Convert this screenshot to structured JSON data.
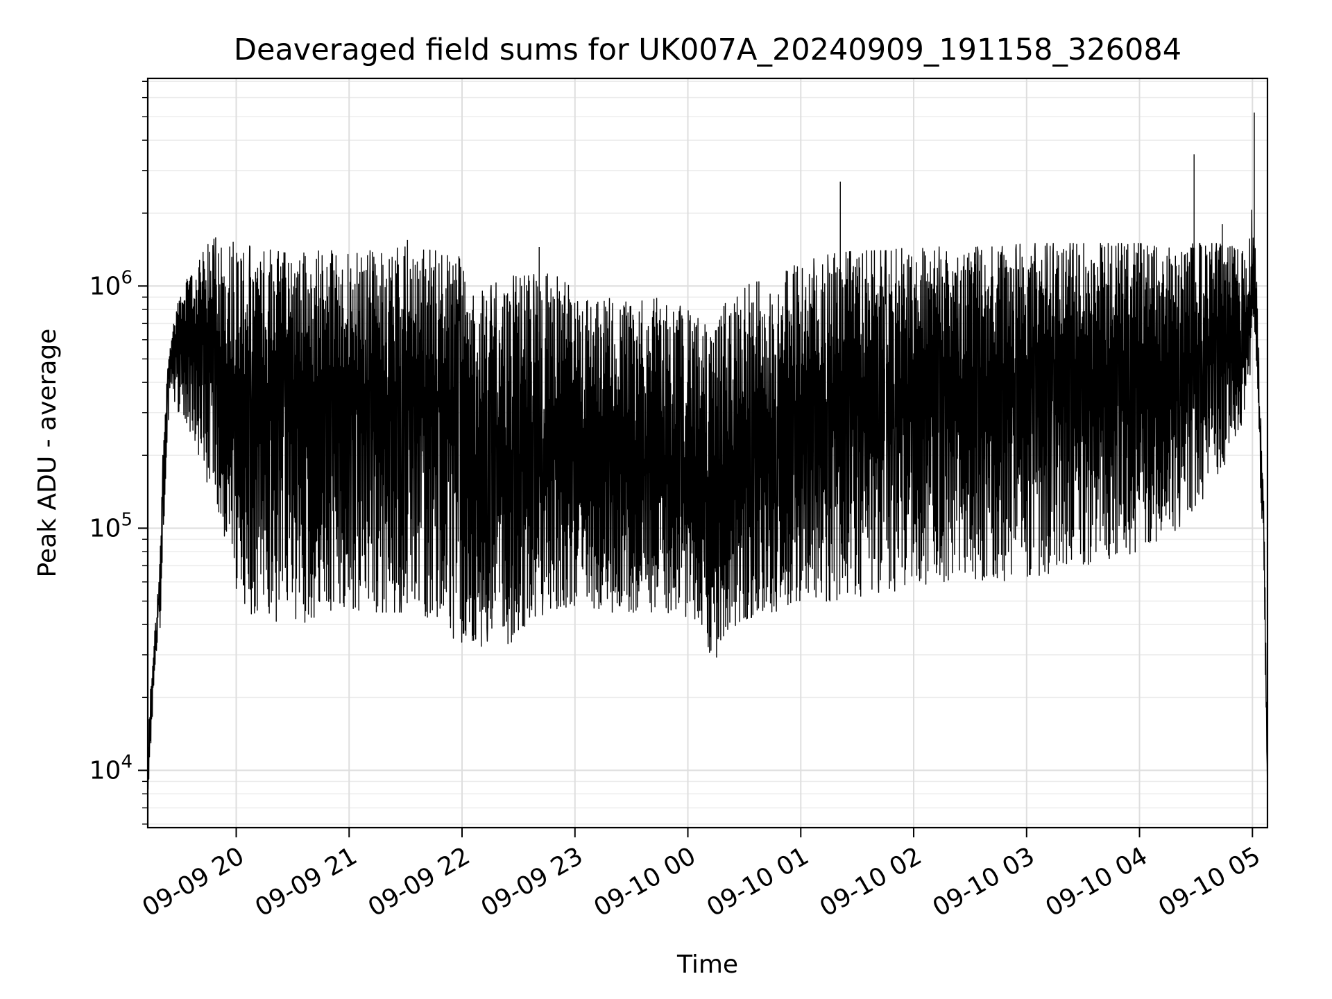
{
  "chart_data": {
    "type": "line",
    "title": "Deaveraged field sums for UK007A_20240909_191158_326084",
    "xlabel": "Time",
    "ylabel": "Peak ADU - average",
    "y_scale": "log",
    "ylim": [
      5800,
      7200000
    ],
    "xlim": [
      "2024-09-09 19:13",
      "2024-09-10 05:08"
    ],
    "grid": true,
    "line_color": "#000000",
    "x_ticks": [
      {
        "t": "2024-09-09 20:00",
        "label": "09-09 20"
      },
      {
        "t": "2024-09-09 21:00",
        "label": "09-09 21"
      },
      {
        "t": "2024-09-09 22:00",
        "label": "09-09 22"
      },
      {
        "t": "2024-09-09 23:00",
        "label": "09-09 23"
      },
      {
        "t": "2024-09-10 00:00",
        "label": "09-10 00"
      },
      {
        "t": "2024-09-10 01:00",
        "label": "09-10 01"
      },
      {
        "t": "2024-09-10 02:00",
        "label": "09-10 02"
      },
      {
        "t": "2024-09-10 03:00",
        "label": "09-10 03"
      },
      {
        "t": "2024-09-10 04:00",
        "label": "09-10 04"
      },
      {
        "t": "2024-09-10 05:00",
        "label": "09-10 05"
      }
    ],
    "y_ticks": [
      {
        "value": 10000,
        "base": "10",
        "exp": "4"
      },
      {
        "value": 100000,
        "base": "10",
        "exp": "5"
      },
      {
        "value": 1000000,
        "base": "10",
        "exp": "6"
      }
    ],
    "series": [
      {
        "x": [
          "2024-09-09 19:13",
          "2024-09-09 19:14",
          "2024-09-09 19:16",
          "2024-09-09 19:18",
          "2024-09-09 19:20",
          "2024-09-09 19:21",
          "2024-09-09 19:23",
          "2024-09-09 19:25",
          "2024-09-09 19:28",
          "2024-09-09 19:31",
          "2024-09-09 19:35",
          "2024-09-09 19:40",
          "2024-09-09 19:45",
          "2024-09-09 19:50",
          "2024-09-09 20:00",
          "2024-09-09 20:10",
          "2024-09-09 20:20",
          "2024-09-09 20:30",
          "2024-09-09 20:45",
          "2024-09-09 21:00",
          "2024-09-09 21:15",
          "2024-09-09 21:30",
          "2024-09-09 21:45",
          "2024-09-09 21:52",
          "2024-09-09 21:58",
          "2024-09-09 22:05",
          "2024-09-09 22:15",
          "2024-09-09 22:25",
          "2024-09-09 22:35",
          "2024-09-09 22:45",
          "2024-09-09 23:00",
          "2024-09-09 23:15",
          "2024-09-09 23:30",
          "2024-09-09 23:45",
          "2024-09-10 00:00",
          "2024-09-10 00:08",
          "2024-09-10 00:13",
          "2024-09-10 00:20",
          "2024-09-10 00:30",
          "2024-09-10 00:45",
          "2024-09-10 01:00",
          "2024-09-10 01:15",
          "2024-09-10 01:30",
          "2024-09-10 01:45",
          "2024-09-10 02:00",
          "2024-09-10 02:15",
          "2024-09-10 02:30",
          "2024-09-10 02:45",
          "2024-09-10 03:00",
          "2024-09-10 03:15",
          "2024-09-10 03:30",
          "2024-09-10 03:45",
          "2024-09-10 04:00",
          "2024-09-10 04:15",
          "2024-09-10 04:30",
          "2024-09-10 04:45",
          "2024-09-10 04:52",
          "2024-09-10 04:58",
          "2024-09-10 05:00",
          "2024-09-10 05:02",
          "2024-09-10 05:04",
          "2024-09-10 05:06",
          "2024-09-10 05:07",
          "2024-09-10 05:08"
        ],
        "upper": [
          10000,
          20000,
          33000,
          50000,
          100000,
          200000,
          400000,
          600000,
          800000,
          1000000,
          1100000,
          1300000,
          1500000,
          1600000,
          1500000,
          1450000,
          1400000,
          1350000,
          1400000,
          1400000,
          1400000,
          1450000,
          1450000,
          1400000,
          1350000,
          900000,
          1000000,
          1100000,
          1100000,
          1150000,
          1000000,
          900000,
          850000,
          900000,
          800000,
          750000,
          700000,
          850000,
          1000000,
          1100000,
          1250000,
          1350000,
          1400000,
          1400000,
          1450000,
          1450000,
          1450000,
          1450000,
          1500000,
          1500000,
          1500000,
          1500000,
          1500000,
          1450000,
          1500000,
          1500000,
          1450000,
          1350000,
          2400000,
          1200000,
          400000,
          130000,
          40000,
          8000
        ],
        "lower": [
          8000,
          10000,
          20000,
          30000,
          40000,
          80000,
          200000,
          400000,
          300000,
          300000,
          250000,
          200000,
          150000,
          120000,
          55000,
          42000,
          38000,
          40000,
          42000,
          42000,
          45000,
          45000,
          42000,
          38000,
          32000,
          30000,
          35000,
          33000,
          40000,
          45000,
          48000,
          45000,
          45000,
          44000,
          43000,
          38000,
          27000,
          35000,
          42000,
          45000,
          48000,
          50000,
          52000,
          55000,
          55000,
          60000,
          62000,
          60000,
          63000,
          65000,
          70000,
          75000,
          80000,
          90000,
          120000,
          180000,
          250000,
          300000,
          800000,
          500000,
          150000,
          80000,
          20000,
          8000
        ],
        "mid": [
          9000,
          14000,
          26000,
          40000,
          70000,
          130000,
          300000,
          500000,
          650000,
          700000,
          650000,
          620000,
          600000,
          500000,
          400000,
          350000,
          330000,
          330000,
          330000,
          340000,
          340000,
          350000,
          340000,
          330000,
          320000,
          150000,
          170000,
          180000,
          200000,
          210000,
          200000,
          180000,
          180000,
          180000,
          170000,
          150000,
          110000,
          150000,
          200000,
          240000,
          280000,
          320000,
          350000,
          360000,
          380000,
          390000,
          400000,
          410000,
          420000,
          430000,
          440000,
          450000,
          460000,
          470000,
          500000,
          560000,
          600000,
          600000,
          1000000,
          800000,
          250000,
          100000,
          30000,
          8000
        ],
        "spikes": [
          {
            "t": "2024-09-10 01:21",
            "value": 2700000
          },
          {
            "t": "2024-09-10 04:29",
            "value": 3500000
          },
          {
            "t": "2024-09-10 05:01",
            "value": 5200000
          },
          {
            "t": "2024-09-09 22:41",
            "value": 1450000
          },
          {
            "t": "2024-09-09 21:31",
            "value": 1550000
          },
          {
            "t": "2024-09-10 04:44",
            "value": 1800000
          }
        ]
      }
    ]
  }
}
